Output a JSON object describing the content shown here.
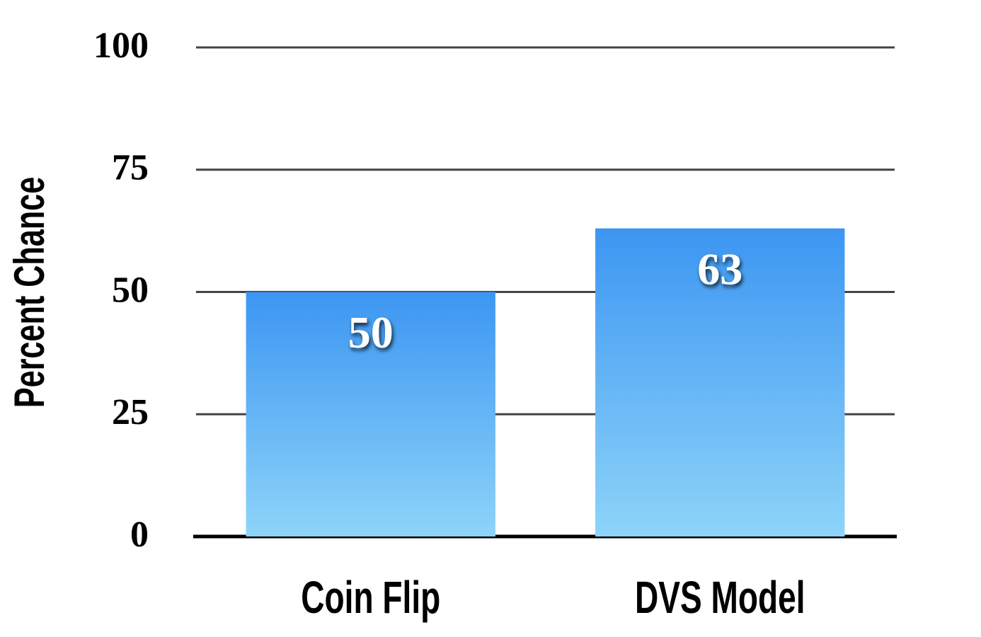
{
  "chart_data": {
    "type": "bar",
    "y_label": "Percent Chance",
    "categories": [
      "Coin Flip",
      "DVS Model"
    ],
    "values": [
      50,
      63
    ],
    "gradient": [
      "#3c96f2",
      "#8ed4f9"
    ],
    "ylim": [
      0,
      100
    ],
    "yticks": [
      0,
      25,
      50,
      75,
      100
    ],
    "grid": true
  }
}
